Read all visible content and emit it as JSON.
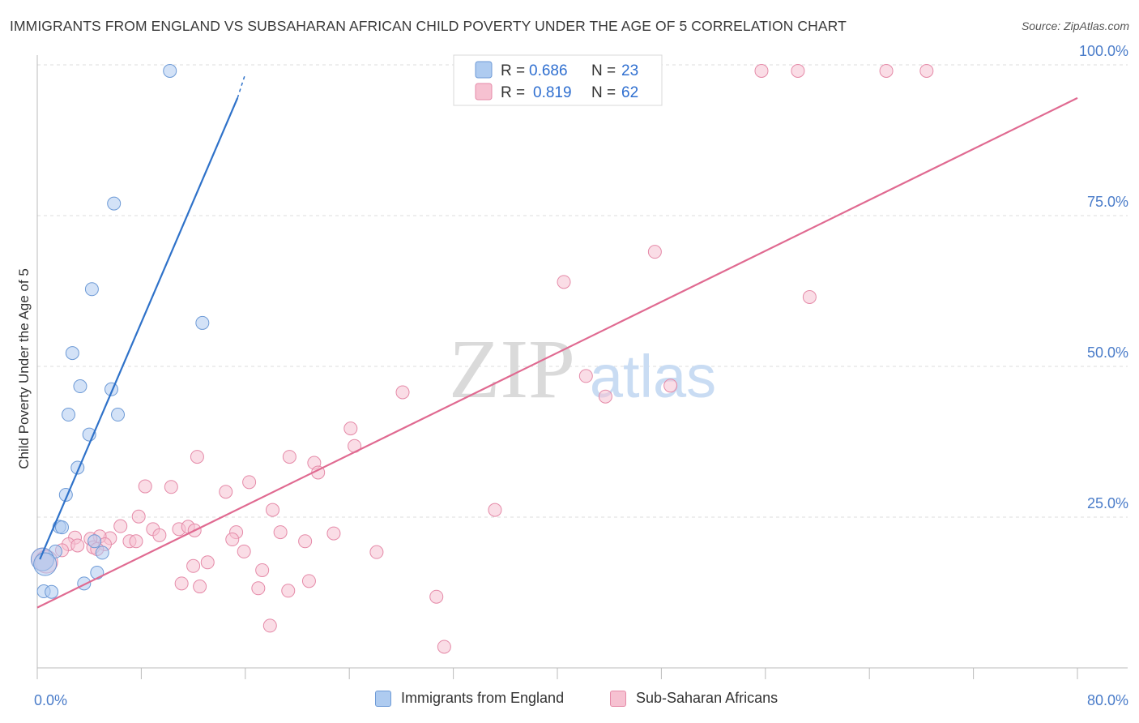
{
  "title": "IMMIGRANTS FROM ENGLAND VS SUBSAHARAN AFRICAN CHILD POVERTY UNDER THE AGE OF 5 CORRELATION CHART",
  "source": "Source: ZipAtlas.com",
  "watermark": {
    "zip": "ZIP",
    "atlas": "atlas"
  },
  "colors": {
    "blue_fill": "#aecbf0",
    "blue_stroke": "#6d9ad6",
    "blue_line": "#2f72c9",
    "pink_fill": "#f6c1d1",
    "pink_stroke": "#e58aa8",
    "pink_line": "#e06a91",
    "axis_text": "#4a7cc9",
    "grid": "#dddddd"
  },
  "legend_top": [
    {
      "r_label": "R =",
      "r_value": "0.686",
      "n_label": "N =",
      "n_value": "23",
      "series": "blue"
    },
    {
      "r_label": "R =",
      "r_value": "0.819",
      "n_label": "N =",
      "n_value": "62",
      "series": "pink"
    }
  ],
  "chart_data": {
    "type": "scatter",
    "title": "IMMIGRANTS FROM ENGLAND VS SUBSAHARAN AFRICAN CHILD POVERTY UNDER THE AGE OF 5 CORRELATION CHART",
    "xlabel": "",
    "ylabel": "Child Poverty Under the Age of 5",
    "xlim": [
      0,
      80
    ],
    "ylim": [
      0,
      102
    ],
    "x_tick_labels": [
      {
        "value": 0,
        "label": "0.0%"
      },
      {
        "value": 80,
        "label": "80.0%"
      }
    ],
    "y_tick_labels": [
      {
        "value": 25,
        "label": "25.0%"
      },
      {
        "value": 50,
        "label": "50.0%"
      },
      {
        "value": 75,
        "label": "75.0%"
      },
      {
        "value": 100,
        "label": "100.0%"
      }
    ],
    "series": [
      {
        "name": "Immigrants from England",
        "color": "blue",
        "trend": {
          "x0": 0.2,
          "y0": 18.0,
          "x1": 15.4,
          "y1": 94.5,
          "dash_x1": 16.0,
          "dash_y1": 98.5
        },
        "points": [
          [
            10.2,
            99.0
          ],
          [
            5.9,
            77.0
          ],
          [
            4.2,
            62.8
          ],
          [
            12.7,
            57.2
          ],
          [
            2.7,
            52.2
          ],
          [
            3.3,
            46.7
          ],
          [
            5.7,
            46.2
          ],
          [
            2.4,
            42.0
          ],
          [
            6.2,
            42.0
          ],
          [
            4.0,
            38.7
          ],
          [
            3.1,
            33.2
          ],
          [
            2.2,
            28.7
          ],
          [
            1.7,
            23.4
          ],
          [
            1.9,
            23.3
          ],
          [
            4.4,
            21.0
          ],
          [
            1.4,
            19.3
          ],
          [
            5.0,
            19.1
          ],
          [
            0.4,
            18.0
          ],
          [
            0.6,
            17.2
          ],
          [
            4.6,
            15.8
          ],
          [
            3.6,
            14.0
          ],
          [
            0.5,
            12.7
          ],
          [
            1.1,
            12.6
          ]
        ]
      },
      {
        "name": "Sub-Saharan Africans",
        "color": "pink",
        "trend": {
          "x0": 0,
          "y0": 10.0,
          "x1": 80,
          "y1": 94.5
        },
        "points": [
          [
            55.7,
            99.0
          ],
          [
            58.5,
            99.0
          ],
          [
            65.3,
            99.0
          ],
          [
            68.4,
            99.0
          ],
          [
            47.5,
            69.0
          ],
          [
            40.5,
            64.0
          ],
          [
            59.4,
            61.5
          ],
          [
            42.2,
            48.4
          ],
          [
            48.7,
            46.8
          ],
          [
            43.7,
            45.0
          ],
          [
            28.1,
            45.7
          ],
          [
            24.1,
            39.7
          ],
          [
            24.4,
            36.8
          ],
          [
            12.3,
            35.0
          ],
          [
            19.4,
            35.0
          ],
          [
            21.3,
            34.0
          ],
          [
            21.6,
            32.4
          ],
          [
            16.3,
            30.8
          ],
          [
            8.3,
            30.1
          ],
          [
            10.3,
            30.0
          ],
          [
            14.5,
            29.2
          ],
          [
            35.2,
            26.2
          ],
          [
            18.1,
            26.2
          ],
          [
            7.8,
            25.1
          ],
          [
            6.4,
            23.5
          ],
          [
            8.9,
            23.0
          ],
          [
            10.9,
            23.0
          ],
          [
            11.6,
            23.4
          ],
          [
            12.1,
            22.8
          ],
          [
            15.3,
            22.5
          ],
          [
            18.7,
            22.5
          ],
          [
            9.4,
            22.0
          ],
          [
            5.6,
            21.5
          ],
          [
            4.8,
            21.8
          ],
          [
            22.8,
            22.3
          ],
          [
            2.9,
            21.6
          ],
          [
            4.1,
            21.4
          ],
          [
            15.0,
            21.3
          ],
          [
            7.1,
            21.0
          ],
          [
            7.6,
            21.0
          ],
          [
            20.6,
            21.0
          ],
          [
            5.2,
            20.5
          ],
          [
            2.4,
            20.5
          ],
          [
            3.1,
            20.3
          ],
          [
            4.3,
            20.0
          ],
          [
            1.9,
            19.5
          ],
          [
            4.6,
            19.7
          ],
          [
            15.9,
            19.3
          ],
          [
            26.1,
            19.2
          ],
          [
            0.4,
            18.0
          ],
          [
            0.7,
            17.6
          ],
          [
            13.1,
            17.5
          ],
          [
            12.0,
            16.9
          ],
          [
            17.3,
            16.2
          ],
          [
            20.9,
            14.4
          ],
          [
            11.1,
            14.0
          ],
          [
            12.5,
            13.5
          ],
          [
            17.0,
            13.2
          ],
          [
            19.3,
            12.8
          ],
          [
            30.7,
            11.8
          ],
          [
            17.9,
            7.0
          ],
          [
            31.3,
            3.5
          ]
        ]
      }
    ]
  },
  "legend_bottom": [
    {
      "label": "Immigrants from England",
      "series": "blue"
    },
    {
      "label": "Sub-Saharan Africans",
      "series": "pink"
    }
  ]
}
